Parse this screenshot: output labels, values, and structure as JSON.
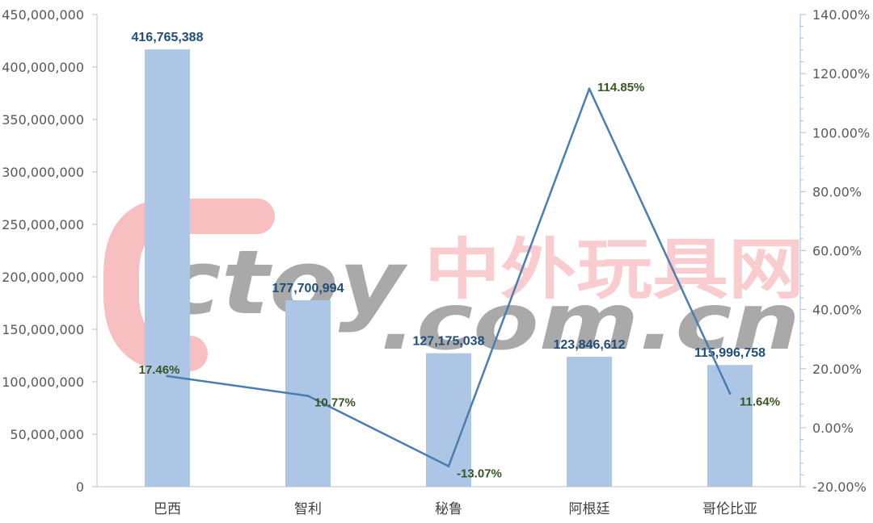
{
  "chart_data": {
    "type": "bar+line",
    "categories": [
      "巴西",
      "智利",
      "秘鲁",
      "阿根廷",
      "哥伦比亚"
    ],
    "bar_values": [
      416765388,
      177700994,
      127175038,
      123846612,
      115996758
    ],
    "bar_labels": [
      "416,765,388",
      "177,700,994",
      "127,175,038",
      "123,846,612",
      "115,996,758"
    ],
    "line_values": [
      17.46,
      10.77,
      -13.07,
      114.85,
      11.64
    ],
    "line_labels": [
      "17.46%",
      "10.77%",
      "-13.07%",
      "114.85%",
      "11.64%"
    ],
    "y_left": {
      "ylim": [
        0,
        450000000
      ],
      "ticks": [
        "450,000,000",
        "400,000,000",
        "350,000,000",
        "300,000,000",
        "250,000,000",
        "200,000,000",
        "150,000,000",
        "100,000,000",
        "50,000,000",
        "0"
      ]
    },
    "y_right": {
      "ylim": [
        -20,
        140
      ],
      "ticks": [
        "140.00%",
        "120.00%",
        "100.00%",
        "80.00%",
        "60.00%",
        "40.00%",
        "20.00%",
        "0.00%",
        "-20.00%"
      ]
    },
    "grid": false,
    "colors": {
      "bar": "#aec6e6",
      "line": "#4a7eb0",
      "bar_label": "#1f4e79",
      "line_label": "#375623"
    }
  },
  "watermark": {
    "latin_top": "ctoy",
    "latin_bottom": ".com.cn",
    "cjk": "中外玩具网"
  }
}
